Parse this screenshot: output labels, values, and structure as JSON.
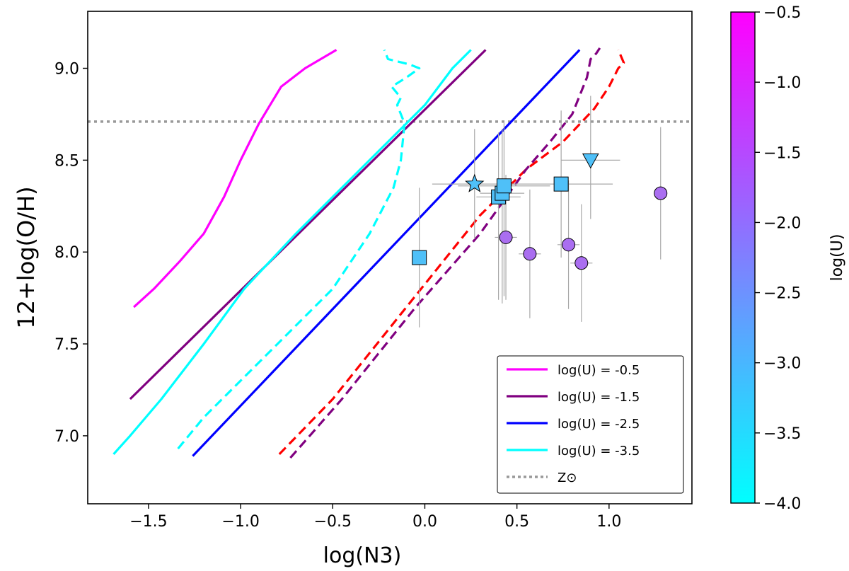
{
  "chart_data": {
    "type": "line",
    "title": "",
    "xlabel": "log(N3)",
    "ylabel": "12+log(O/H)",
    "xlim": [
      -1.83,
      1.45
    ],
    "ylim": [
      6.63,
      9.31
    ],
    "xticks": [
      -1.5,
      -1.0,
      -0.5,
      0.0,
      0.5,
      1.0
    ],
    "xtick_labels": [
      "−1.5",
      "−1.0",
      "−0.5",
      "0.0",
      "0.5",
      "1.0"
    ],
    "yticks": [
      7.0,
      7.5,
      8.0,
      8.5,
      9.0
    ],
    "ytick_labels": [
      "7.0",
      "7.5",
      "8.0",
      "8.5",
      "9.0"
    ],
    "reference_line": {
      "name": "Z⊙",
      "y": 8.71,
      "color": "#999999",
      "style": "dotted"
    },
    "series": [
      {
        "name": "log(U) = -0.5",
        "color": "#ff00ff",
        "style": "solid",
        "legend": true,
        "x": [
          -1.58,
          -1.47,
          -1.33,
          -1.2,
          -1.09,
          -1.0,
          -0.9,
          -0.78,
          -0.65,
          -0.48
        ],
        "y": [
          7.7,
          7.8,
          7.95,
          8.1,
          8.3,
          8.5,
          8.7,
          8.9,
          9.0,
          9.1
        ]
      },
      {
        "name": "log(U) = -1.5",
        "color": "#800080",
        "style": "solid",
        "legend": true,
        "x": [
          -1.6,
          0.33
        ],
        "y": [
          7.2,
          9.1
        ]
      },
      {
        "name": "log(U) = -2.5",
        "color": "#0000ff",
        "style": "solid",
        "legend": true,
        "x": [
          -1.26,
          0.84
        ],
        "y": [
          6.89,
          9.1
        ]
      },
      {
        "name": "log(U) = -3.5",
        "color": "#00ffff",
        "style": "solid",
        "legend": true,
        "x": [
          -1.69,
          -1.6,
          -1.43,
          -1.2,
          -0.98,
          -0.7,
          -0.45,
          -0.2,
          0.0,
          0.15,
          0.25
        ],
        "y": [
          6.9,
          7.0,
          7.2,
          7.5,
          7.8,
          8.1,
          8.35,
          8.6,
          8.8,
          9.0,
          9.1
        ]
      },
      {
        "name": "cyan-dashed",
        "color": "#00ffff",
        "style": "dashed",
        "legend": false,
        "x": [
          -1.34,
          -1.2,
          -1.0,
          -0.8,
          -0.5,
          -0.3,
          -0.17,
          -0.13,
          -0.12,
          -0.11,
          -0.15,
          -0.13,
          -0.18,
          -0.1,
          -0.03,
          -0.08,
          -0.2,
          -0.22
        ],
        "y": [
          6.93,
          7.1,
          7.3,
          7.5,
          7.8,
          8.1,
          8.35,
          8.5,
          8.6,
          8.7,
          8.8,
          8.84,
          8.9,
          8.95,
          9.0,
          9.02,
          9.05,
          9.1
        ]
      },
      {
        "name": "red-dashed",
        "color": "#ff0000",
        "style": "dashed",
        "legend": false,
        "x": [
          -0.79,
          -0.5,
          -0.1,
          0.3,
          0.55,
          0.75,
          0.92,
          1.0,
          1.05,
          1.08,
          1.05
        ],
        "y": [
          6.9,
          7.2,
          7.7,
          8.2,
          8.45,
          8.6,
          8.78,
          8.9,
          9.0,
          9.03,
          9.1
        ]
      },
      {
        "name": "purple-dashed",
        "color": "#800080",
        "style": "dashed",
        "legend": false,
        "x": [
          -0.73,
          -0.45,
          -0.05,
          0.3,
          0.55,
          0.68,
          0.8,
          0.86,
          0.88,
          0.89,
          0.9,
          0.93,
          0.95
        ],
        "y": [
          6.88,
          7.2,
          7.7,
          8.1,
          8.45,
          8.6,
          8.75,
          8.9,
          8.95,
          9.0,
          9.05,
          9.08,
          9.11
        ]
      }
    ],
    "scatter_points": [
      {
        "marker": "circle",
        "x": 0.44,
        "y": 8.08,
        "color": "#aa6ef0",
        "xerr": [
          0.06,
          0.06
        ],
        "yerr": [
          0.34,
          0.34
        ]
      },
      {
        "marker": "circle",
        "x": 0.57,
        "y": 7.99,
        "color": "#aa6ef0",
        "xerr": [
          0.06,
          0.06
        ],
        "yerr": [
          0.35,
          0.35
        ]
      },
      {
        "marker": "circle",
        "x": 0.78,
        "y": 8.04,
        "color": "#aa6ef0",
        "xerr": [
          0.06,
          0.06
        ],
        "yerr": [
          0.35,
          0.35
        ]
      },
      {
        "marker": "circle",
        "x": 0.85,
        "y": 7.94,
        "color": "#aa6ef0",
        "xerr": [
          0.06,
          0.06
        ],
        "yerr": [
          0.32,
          0.32
        ]
      },
      {
        "marker": "circle",
        "x": 1.28,
        "y": 8.32,
        "color": "#aa6ef0",
        "xerr": [
          0.0,
          0.0
        ],
        "yerr": [
          0.36,
          0.36
        ]
      },
      {
        "marker": "square",
        "x": -0.03,
        "y": 7.97,
        "color": "#4fc0f8",
        "xerr": [
          0.0,
          0.0
        ],
        "yerr": [
          0.38,
          0.38
        ]
      },
      {
        "marker": "square",
        "x": 0.4,
        "y": 8.3,
        "color": "#4fc0f8",
        "xerr": [
          0.12,
          0.12
        ],
        "yerr": [
          0.56,
          0.35
        ]
      },
      {
        "marker": "square",
        "x": 0.42,
        "y": 8.32,
        "color": "#4fc0f8",
        "xerr": [
          0.12,
          0.12
        ],
        "yerr": [
          0.6,
          0.35
        ]
      },
      {
        "marker": "square",
        "x": 0.43,
        "y": 8.36,
        "color": "#4fc0f8",
        "xerr": [
          0.25,
          0.25
        ],
        "yerr": [
          0.6,
          0.35
        ]
      },
      {
        "marker": "square",
        "x": 0.74,
        "y": 8.37,
        "color": "#4fc0f8",
        "xerr": [
          0.28,
          0.28
        ],
        "yerr": [
          0.4,
          0.4
        ]
      },
      {
        "marker": "star",
        "x": 0.27,
        "y": 8.37,
        "color": "#4fc0f8",
        "xerr": [
          0.23,
          0.23
        ],
        "yerr": [
          0.3,
          0.3
        ]
      },
      {
        "marker": "triangle-down",
        "x": 0.9,
        "y": 8.5,
        "color": "#4fc0f8",
        "xerr": [
          0.16,
          0.16
        ],
        "yerr": [
          0.32,
          0.35
        ]
      }
    ],
    "colorbar": {
      "label": "log(U)",
      "range": [
        -4.0,
        -0.5
      ],
      "ticks": [
        -0.5,
        -1.0,
        -1.5,
        -2.0,
        -2.5,
        -3.0,
        -3.5,
        -4.0
      ],
      "tick_labels": [
        "−0.5",
        "−1.0",
        "−1.5",
        "−2.0",
        "−2.5",
        "−3.0",
        "−3.5",
        "−4.0"
      ],
      "color_low": "#00ffff",
      "color_high": "#ff00ff"
    },
    "legend": {
      "placement": "lower-right",
      "entries": [
        {
          "label": "log(U) = -0.5",
          "color": "#ff00ff",
          "style": "solid"
        },
        {
          "label": "log(U) = -1.5",
          "color": "#800080",
          "style": "solid"
        },
        {
          "label": "log(U) = -2.5",
          "color": "#0000ff",
          "style": "solid"
        },
        {
          "label": "log(U) = -3.5",
          "color": "#00ffff",
          "style": "solid"
        },
        {
          "label": "Z⊙",
          "color": "#999999",
          "style": "dotted"
        }
      ]
    }
  }
}
